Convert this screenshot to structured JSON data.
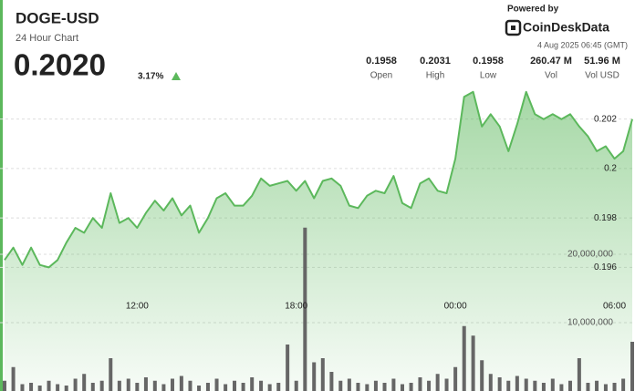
{
  "header": {
    "title": "DOGE-USD",
    "subtitle": "24 Hour Chart",
    "price": "0.2020",
    "change": "3.17%",
    "powered_by": "Powered by",
    "brand": "CoinDeskData",
    "timestamp": "4 Aug 2025 06:45 (GMT)",
    "stats": [
      {
        "value": "0.1958",
        "label": "Open"
      },
      {
        "value": "0.2031",
        "label": "High"
      },
      {
        "value": "0.1958",
        "label": "Low"
      },
      {
        "value": "260.47 M",
        "label": "Vol"
      },
      {
        "value": "51.96 M",
        "label": "Vol USD"
      }
    ]
  },
  "chart_data": {
    "type": "area",
    "x": [
      7,
      7.33,
      7.67,
      8,
      8.33,
      8.67,
      9,
      9.33,
      9.67,
      10,
      10.33,
      10.67,
      11,
      11.33,
      11.67,
      12,
      12.33,
      12.67,
      13,
      13.33,
      13.67,
      14,
      14.33,
      14.67,
      15,
      15.33,
      15.67,
      16,
      16.33,
      16.67,
      17,
      17.33,
      17.67,
      18,
      18.33,
      18.67,
      19,
      19.33,
      19.67,
      20,
      20.33,
      20.67,
      21,
      21.33,
      21.67,
      22,
      22.33,
      22.67,
      23,
      23.33,
      23.67,
      24,
      24.33,
      24.67,
      25,
      25.33,
      25.67,
      26,
      26.33,
      26.67,
      27,
      27.33,
      27.67,
      28,
      28.33,
      28.67,
      29,
      29.33,
      29.67,
      30,
      30.33,
      30.67
    ],
    "series": [
      {
        "color": "#5cb85c",
        "values": [
          0.1963,
          0.1968,
          0.1961,
          0.1968,
          0.1961,
          0.196,
          0.1963,
          0.197,
          0.1976,
          0.1974,
          0.198,
          0.1976,
          0.199,
          0.1978,
          0.198,
          0.1976,
          0.1982,
          0.1987,
          0.1983,
          0.1988,
          0.1981,
          0.1985,
          0.1974,
          0.198,
          0.1988,
          0.199,
          0.1985,
          0.1985,
          0.1989,
          0.1996,
          0.1993,
          0.1994,
          0.1995,
          0.1991,
          0.1995,
          0.1988,
          0.1995,
          0.1996,
          0.1993,
          0.1985,
          0.1984,
          0.1989,
          0.1991,
          0.199,
          0.1997,
          0.1986,
          0.1984,
          0.1994,
          0.1996,
          0.1991,
          0.199,
          0.2004,
          0.2029,
          0.2031,
          0.2017,
          0.2022,
          0.2017,
          0.2007,
          0.2018,
          0.2031,
          0.2022,
          0.202,
          0.2022,
          0.202,
          0.2022,
          0.2017,
          0.2013,
          0.2007,
          0.2009,
          0.2004,
          0.2007,
          0.202
        ]
      },
      {
        "type": "bar",
        "axis": "y2",
        "color": "#666666",
        "values": [
          1500000,
          3500000,
          1000000,
          1200000,
          800000,
          1500000,
          1000000,
          800000,
          1800000,
          2500000,
          1200000,
          1500000,
          4800000,
          1500000,
          1800000,
          1200000,
          2000000,
          1500000,
          1000000,
          1800000,
          2200000,
          1500000,
          800000,
          1200000,
          1800000,
          1000000,
          1500000,
          1200000,
          2000000,
          1500000,
          1000000,
          1200000,
          6800000,
          1500000,
          23900000,
          4200000,
          4800000,
          2800000,
          1500000,
          1800000,
          1200000,
          1000000,
          1500000,
          1200000,
          1800000,
          1000000,
          1200000,
          2000000,
          1500000,
          2500000,
          1800000,
          3500000,
          9500000,
          8100000,
          4500000,
          2500000,
          2000000,
          1500000,
          2200000,
          1800000,
          1500000,
          1200000,
          1800000,
          1000000,
          1500000,
          4800000,
          1200000,
          1500000,
          1000000,
          1200000,
          1800000,
          7200000
        ]
      }
    ],
    "xlim": [
      7,
      30.67
    ],
    "xticks": [
      {
        "value": 12,
        "label": "12:00"
      },
      {
        "value": 18,
        "label": "18:00"
      },
      {
        "value": 24,
        "label": "00:00"
      },
      {
        "value": 30,
        "label": "06:00"
      }
    ],
    "ylim": [
      0.191,
      0.2035
    ],
    "yticks": [
      0.202,
      0.2,
      0.198,
      0.196
    ],
    "y2lim": [
      0,
      45200000
    ],
    "y2ticks": [
      {
        "value": 20000000,
        "label": "20,000,000"
      },
      {
        "value": 10000000,
        "label": "10,000,000"
      }
    ],
    "grid": true
  }
}
